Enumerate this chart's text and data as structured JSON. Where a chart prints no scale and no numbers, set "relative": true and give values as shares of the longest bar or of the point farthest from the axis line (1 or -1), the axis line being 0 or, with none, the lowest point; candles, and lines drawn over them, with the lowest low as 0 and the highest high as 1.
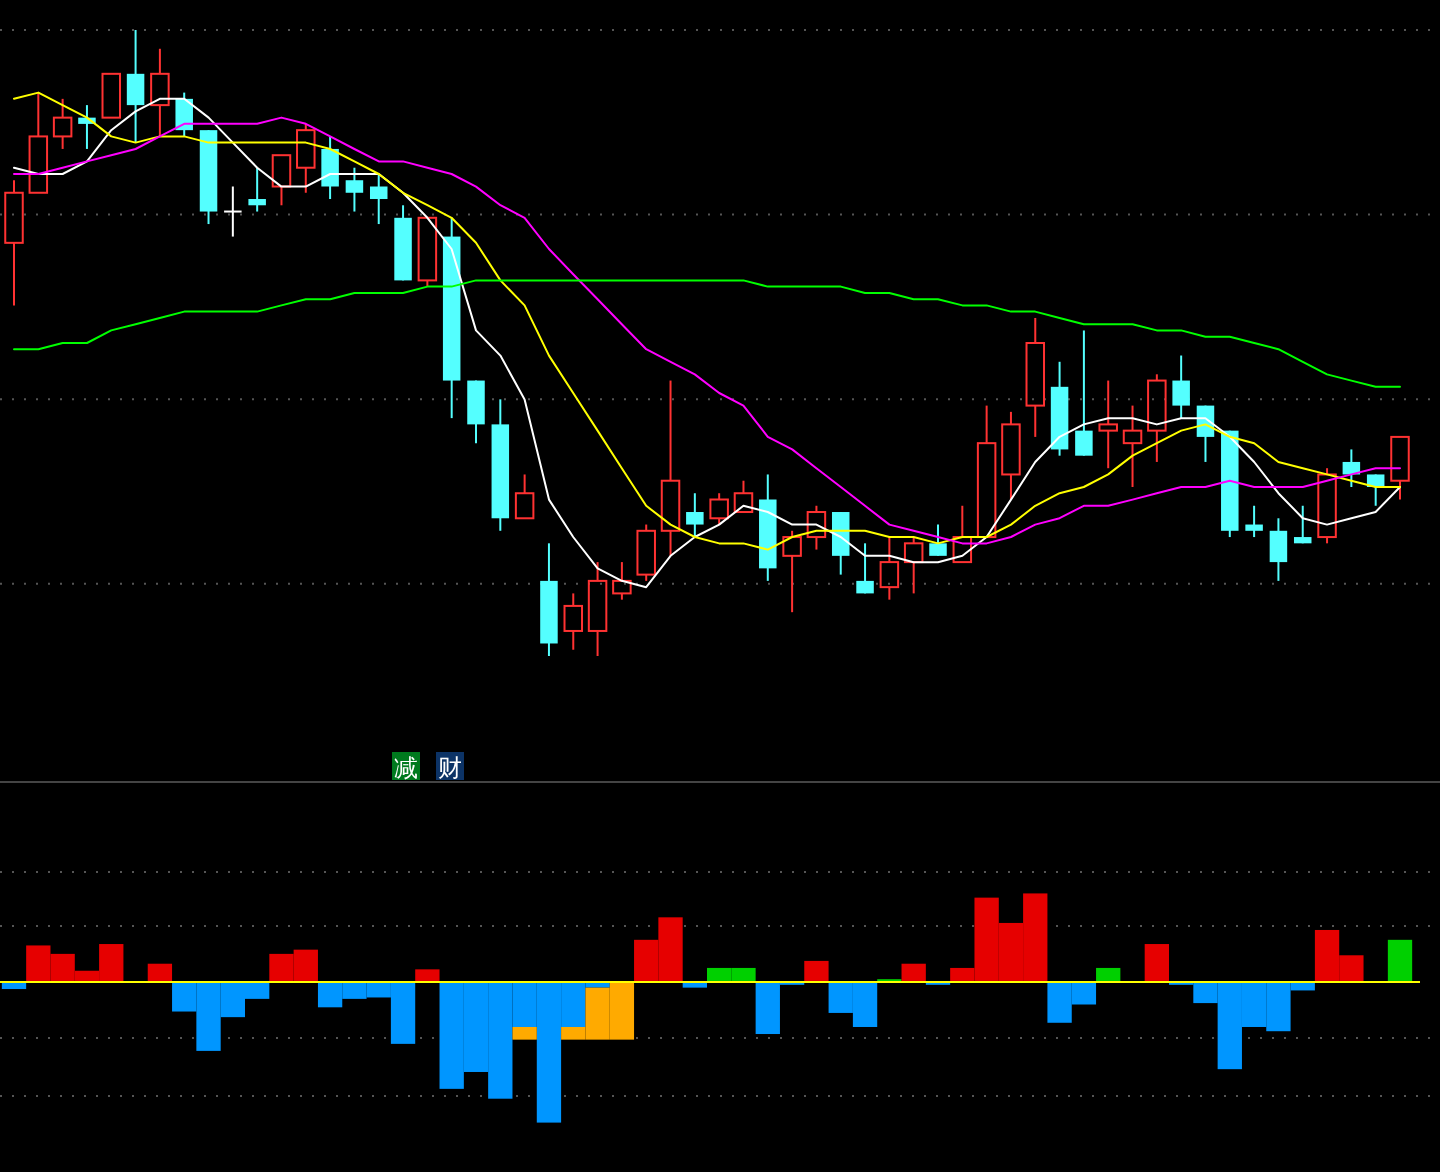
{
  "chart_data": [
    {
      "type": "candlestick",
      "relative": true,
      "grid": true,
      "categories": [
        null,
        null,
        null,
        null,
        null,
        null,
        null,
        null,
        null,
        null,
        null,
        null,
        null,
        null,
        null,
        null,
        null,
        null,
        null,
        null,
        null,
        null,
        null,
        null,
        null,
        null,
        null,
        null,
        null,
        null,
        null,
        null,
        null,
        null,
        null,
        null,
        null,
        null,
        null,
        null,
        null,
        null,
        null,
        null,
        null,
        null,
        null,
        null,
        null,
        null,
        null,
        null,
        null,
        null,
        null,
        null,
        null,
        null
      ],
      "ohlc": [
        [
          0.66,
          0.76,
          0.56,
          0.74
        ],
        [
          0.74,
          0.9,
          0.74,
          0.83
        ],
        [
          0.83,
          0.89,
          0.81,
          0.86
        ],
        [
          0.86,
          0.88,
          0.81,
          0.85
        ],
        [
          0.86,
          0.93,
          0.86,
          0.93
        ],
        [
          0.93,
          1.0,
          0.82,
          0.88
        ],
        [
          0.88,
          0.97,
          0.83,
          0.93
        ],
        [
          0.89,
          0.9,
          0.83,
          0.84
        ],
        [
          0.84,
          0.84,
          0.69,
          0.71
        ],
        [
          0.71,
          0.75,
          0.67,
          0.71
        ],
        [
          0.73,
          0.78,
          0.71,
          0.72
        ],
        [
          0.75,
          0.8,
          0.72,
          0.8
        ],
        [
          0.78,
          0.85,
          0.74,
          0.84
        ],
        [
          0.81,
          0.83,
          0.73,
          0.75
        ],
        [
          0.76,
          0.78,
          0.71,
          0.74
        ],
        [
          0.75,
          0.77,
          0.69,
          0.73
        ],
        [
          0.7,
          0.72,
          0.6,
          0.6
        ],
        [
          0.6,
          0.7,
          0.59,
          0.7
        ],
        [
          0.67,
          0.7,
          0.38,
          0.44
        ],
        [
          0.44,
          0.44,
          0.34,
          0.37
        ],
        [
          0.37,
          0.41,
          0.2,
          0.22
        ],
        [
          0.22,
          0.29,
          0.22,
          0.26
        ],
        [
          0.12,
          0.18,
          0.0,
          0.02
        ],
        [
          0.04,
          0.1,
          0.01,
          0.08
        ],
        [
          0.04,
          0.15,
          0.0,
          0.12
        ],
        [
          0.1,
          0.15,
          0.09,
          0.12
        ],
        [
          0.13,
          0.21,
          0.12,
          0.2
        ],
        [
          0.2,
          0.44,
          0.16,
          0.28
        ],
        [
          0.23,
          0.26,
          0.19,
          0.21
        ],
        [
          0.22,
          0.26,
          0.21,
          0.25
        ],
        [
          0.23,
          0.28,
          0.23,
          0.26
        ],
        [
          0.25,
          0.29,
          0.12,
          0.14
        ],
        [
          0.16,
          0.2,
          0.07,
          0.19
        ],
        [
          0.19,
          0.24,
          0.17,
          0.23
        ],
        [
          0.23,
          0.23,
          0.13,
          0.16
        ],
        [
          0.12,
          0.18,
          0.1,
          0.1
        ],
        [
          0.11,
          0.19,
          0.09,
          0.15
        ],
        [
          0.15,
          0.19,
          0.1,
          0.18
        ],
        [
          0.18,
          0.21,
          0.16,
          0.16
        ],
        [
          0.15,
          0.24,
          0.15,
          0.19
        ],
        [
          0.19,
          0.4,
          0.19,
          0.34
        ],
        [
          0.29,
          0.39,
          0.25,
          0.37
        ],
        [
          0.4,
          0.54,
          0.35,
          0.5
        ],
        [
          0.43,
          0.47,
          0.32,
          0.33
        ],
        [
          0.36,
          0.52,
          0.32,
          0.32
        ],
        [
          0.36,
          0.44,
          0.3,
          0.37
        ],
        [
          0.34,
          0.4,
          0.27,
          0.36
        ],
        [
          0.36,
          0.45,
          0.31,
          0.44
        ],
        [
          0.44,
          0.48,
          0.38,
          0.4
        ],
        [
          0.4,
          0.4,
          0.31,
          0.35
        ],
        [
          0.36,
          0.36,
          0.19,
          0.2
        ],
        [
          0.21,
          0.24,
          0.19,
          0.2
        ],
        [
          0.2,
          0.22,
          0.12,
          0.15
        ],
        [
          0.19,
          0.24,
          0.18,
          0.18
        ],
        [
          0.19,
          0.3,
          0.18,
          0.29
        ],
        [
          0.31,
          0.33,
          0.27,
          0.29
        ],
        [
          0.29,
          0.29,
          0.24,
          0.27
        ],
        [
          0.28,
          0.35,
          0.25,
          0.35
        ]
      ],
      "series": [
        {
          "type": "line",
          "color": "#ffffff",
          "values": [
            0.78,
            0.77,
            0.77,
            0.79,
            0.84,
            0.87,
            0.89,
            0.89,
            0.86,
            0.82,
            0.78,
            0.75,
            0.75,
            0.77,
            0.77,
            0.77,
            0.74,
            0.7,
            0.65,
            0.52,
            0.48,
            0.41,
            0.25,
            0.19,
            0.14,
            0.12,
            0.11,
            0.16,
            0.19,
            0.21,
            0.24,
            0.23,
            0.21,
            0.21,
            0.19,
            0.16,
            0.16,
            0.15,
            0.15,
            0.16,
            0.19,
            0.25,
            0.31,
            0.35,
            0.37,
            0.38,
            0.38,
            0.37,
            0.38,
            0.38,
            0.35,
            0.31,
            0.26,
            0.22,
            0.21,
            0.22,
            0.23,
            0.27
          ]
        },
        {
          "type": "line",
          "color": "#ffff00",
          "values": [
            0.89,
            0.9,
            0.88,
            0.86,
            0.83,
            0.82,
            0.83,
            0.83,
            0.82,
            0.82,
            0.82,
            0.82,
            0.82,
            0.81,
            0.79,
            0.77,
            0.74,
            0.72,
            0.7,
            0.66,
            0.6,
            0.56,
            0.48,
            0.42,
            0.36,
            0.3,
            0.24,
            0.21,
            0.19,
            0.18,
            0.18,
            0.17,
            0.19,
            0.2,
            0.2,
            0.2,
            0.19,
            0.19,
            0.18,
            0.19,
            0.19,
            0.21,
            0.24,
            0.26,
            0.27,
            0.29,
            0.32,
            0.34,
            0.36,
            0.37,
            0.35,
            0.34,
            0.31,
            0.3,
            0.29,
            0.28,
            0.27,
            0.27
          ]
        },
        {
          "type": "line",
          "color": "#ff00ff",
          "values": [
            0.77,
            0.77,
            0.78,
            0.79,
            0.8,
            0.81,
            0.83,
            0.85,
            0.85,
            0.85,
            0.85,
            0.86,
            0.85,
            0.83,
            0.81,
            0.79,
            0.79,
            0.78,
            0.77,
            0.75,
            0.72,
            0.7,
            0.65,
            0.61,
            0.57,
            0.53,
            0.49,
            0.47,
            0.45,
            0.42,
            0.4,
            0.35,
            0.33,
            0.3,
            0.27,
            0.24,
            0.21,
            0.2,
            0.19,
            0.18,
            0.18,
            0.19,
            0.21,
            0.22,
            0.24,
            0.24,
            0.25,
            0.26,
            0.27,
            0.27,
            0.28,
            0.27,
            0.27,
            0.27,
            0.28,
            0.29,
            0.3,
            0.3
          ]
        },
        {
          "type": "line",
          "color": "#00ff00",
          "values": [
            0.49,
            0.49,
            0.5,
            0.5,
            0.52,
            0.53,
            0.54,
            0.55,
            0.55,
            0.55,
            0.55,
            0.56,
            0.57,
            0.57,
            0.58,
            0.58,
            0.58,
            0.59,
            0.59,
            0.6,
            0.6,
            0.6,
            0.6,
            0.6,
            0.6,
            0.6,
            0.6,
            0.6,
            0.6,
            0.6,
            0.6,
            0.59,
            0.59,
            0.59,
            0.59,
            0.58,
            0.58,
            0.57,
            0.57,
            0.56,
            0.56,
            0.55,
            0.55,
            0.54,
            0.53,
            0.53,
            0.53,
            0.52,
            0.52,
            0.51,
            0.51,
            0.5,
            0.49,
            0.47,
            0.45,
            0.44,
            0.43,
            0.43
          ]
        }
      ]
    },
    {
      "type": "bar",
      "relative": true,
      "stacked": true,
      "grid": true,
      "ref_lines": [
        {
          "axis": "y",
          "value": 0,
          "color": "#ffff00"
        }
      ],
      "categories": [
        null,
        null,
        null,
        null,
        null,
        null,
        null,
        null,
        null,
        null,
        null,
        null,
        null,
        null,
        null,
        null,
        null,
        null,
        null,
        null,
        null,
        null,
        null,
        null,
        null,
        null,
        null,
        null,
        null,
        null,
        null,
        null,
        null,
        null,
        null,
        null,
        null,
        null,
        null,
        null,
        null,
        null,
        null,
        null,
        null,
        null,
        null,
        null,
        null,
        null,
        null,
        null,
        null,
        null,
        null,
        null,
        null,
        null
      ],
      "annotations": [
        "减",
        "财"
      ],
      "series": [
        {
          "values": [
            -0.05,
            0.26,
            0.2,
            0.08,
            0.27,
            null,
            0.13,
            -0.21,
            -0.49,
            -0.25,
            -0.12,
            0.2,
            0.23,
            -0.18,
            -0.12,
            -0.11,
            -0.44,
            0.09,
            -0.76,
            -0.64,
            -0.83,
            -0.32,
            -1,
            -0.32,
            -0.04,
            null,
            0.3,
            0.46,
            -0.04,
            0.1,
            0.1,
            -0.37,
            -0.02,
            0.15,
            -0.22,
            -0.32,
            0.02,
            0.13,
            -0.02,
            0.1,
            0.6,
            0.42,
            0.63,
            -0.29,
            -0.16,
            0.1,
            null,
            0.27,
            -0.02,
            -0.15,
            -0.62,
            -0.32,
            -0.35,
            -0.06,
            0.37,
            0.19,
            null,
            0.3
          ],
          "colors": [
            "#0096ff",
            "#e60000",
            "#e60000",
            "#e60000",
            "#e60000",
            null,
            "#e60000",
            "#0096ff",
            "#0096ff",
            "#0096ff",
            "#0096ff",
            "#e60000",
            "#e60000",
            "#0096ff",
            "#0096ff",
            "#0096ff",
            "#0096ff",
            "#e60000",
            "#0096ff",
            "#0096ff",
            "#0096ff",
            "#0096ff",
            "#0096ff",
            "#0096ff",
            "#0096ff",
            null,
            "#e60000",
            "#e60000",
            "#0096ff",
            "#00d000",
            "#00d000",
            "#0096ff",
            "#0096ff",
            "#e60000",
            "#0096ff",
            "#0096ff",
            "#00d000",
            "#e60000",
            "#0096ff",
            "#e60000",
            "#e60000",
            "#e60000",
            "#e60000",
            "#0096ff",
            "#0096ff",
            "#00d000",
            null,
            "#e60000",
            "#0096ff",
            "#0096ff",
            "#0096ff",
            "#0096ff",
            "#0096ff",
            "#0096ff",
            "#e60000",
            "#e60000",
            null,
            "#00d000"
          ]
        },
        {
          "color": "#ffaa00",
          "values": [
            null,
            null,
            null,
            null,
            null,
            null,
            null,
            null,
            null,
            null,
            null,
            null,
            null,
            null,
            null,
            null,
            null,
            null,
            null,
            null,
            null,
            -0.09,
            null,
            -0.09,
            -0.37,
            -0.41,
            null,
            null,
            null,
            null,
            null,
            null,
            null,
            null,
            null,
            null,
            null,
            null,
            null,
            null,
            null,
            null,
            null,
            null,
            null,
            null,
            null,
            null,
            null,
            null,
            null,
            null,
            null,
            null,
            null,
            null,
            null,
            null
          ]
        }
      ]
    }
  ]
}
